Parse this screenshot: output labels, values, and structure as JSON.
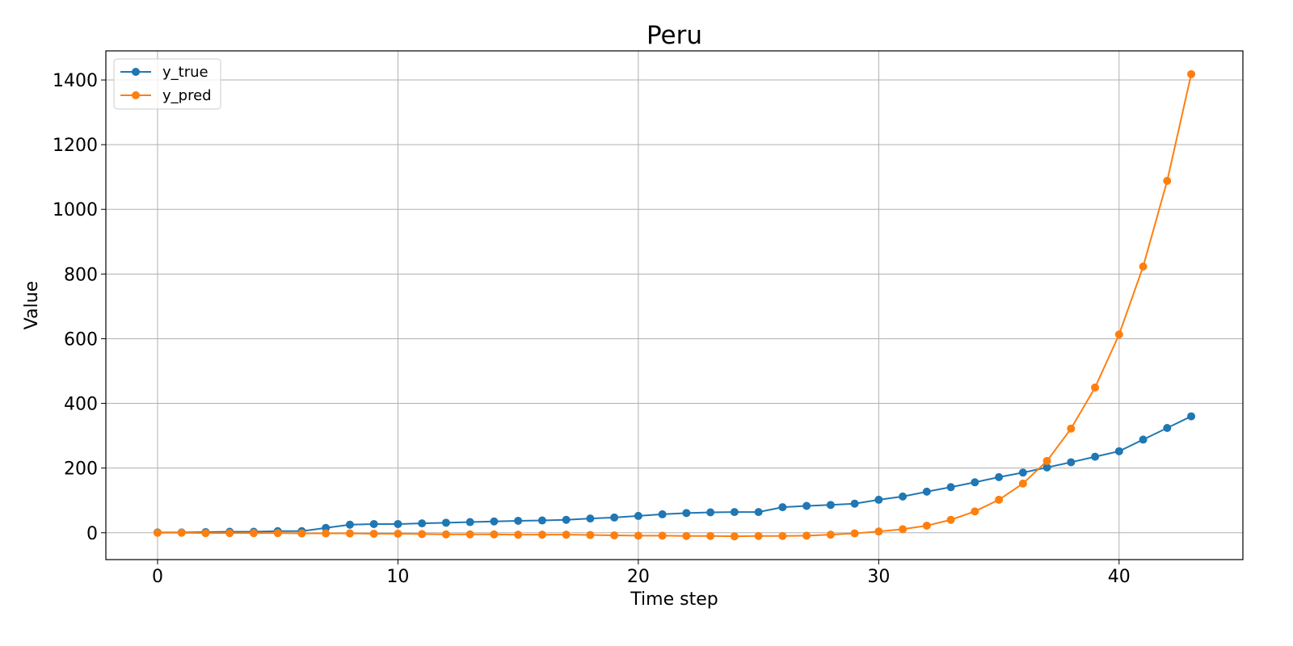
{
  "chart_data": {
    "type": "line",
    "title": "Peru",
    "xlabel": "Time step",
    "ylabel": "Value",
    "xlim": [
      -2.15,
      45.15
    ],
    "ylim": [
      -83,
      1490
    ],
    "xticks": [
      0,
      10,
      20,
      30,
      40
    ],
    "yticks": [
      0,
      200,
      400,
      600,
      800,
      1000,
      1200,
      1400
    ],
    "grid": true,
    "legend_position": "top-left",
    "series": [
      {
        "name": "y_true",
        "color": "#1f77b4",
        "marker": "circle",
        "x": [
          0,
          1,
          2,
          3,
          4,
          5,
          6,
          7,
          8,
          9,
          10,
          11,
          12,
          13,
          14,
          15,
          16,
          17,
          18,
          19,
          20,
          21,
          22,
          23,
          24,
          25,
          26,
          27,
          28,
          29,
          30,
          31,
          32,
          33,
          34,
          35,
          36,
          37,
          38,
          39,
          40,
          41,
          42,
          43
        ],
        "values": [
          1,
          1,
          2,
          3,
          3,
          5,
          5,
          15,
          25,
          27,
          27,
          29,
          31,
          33,
          35,
          37,
          38,
          40,
          44,
          47,
          52,
          57,
          61,
          63,
          64,
          64,
          79,
          83,
          86,
          90,
          102,
          112,
          127,
          141,
          156,
          172,
          186,
          202,
          218,
          235,
          252,
          288,
          324,
          360
        ]
      },
      {
        "name": "y_pred",
        "color": "#ff7f0e",
        "marker": "circle",
        "x": [
          0,
          1,
          2,
          3,
          4,
          5,
          6,
          7,
          8,
          9,
          10,
          11,
          12,
          13,
          14,
          15,
          16,
          17,
          18,
          19,
          20,
          21,
          22,
          23,
          24,
          25,
          26,
          27,
          28,
          29,
          30,
          31,
          32,
          33,
          34,
          35,
          36,
          37,
          38,
          39,
          40,
          41,
          42,
          43
        ],
        "values": [
          0,
          0,
          -1,
          -1,
          -1,
          -1,
          -2,
          -2,
          -2,
          -3,
          -3,
          -4,
          -5,
          -5,
          -5,
          -6,
          -6,
          -6,
          -7,
          -8,
          -9,
          -9,
          -10,
          -10,
          -11,
          -10,
          -10,
          -9,
          -6,
          -2,
          4,
          11,
          22,
          40,
          66,
          102,
          152,
          222,
          322,
          449,
          613,
          823,
          1088,
          1418
        ]
      }
    ]
  }
}
